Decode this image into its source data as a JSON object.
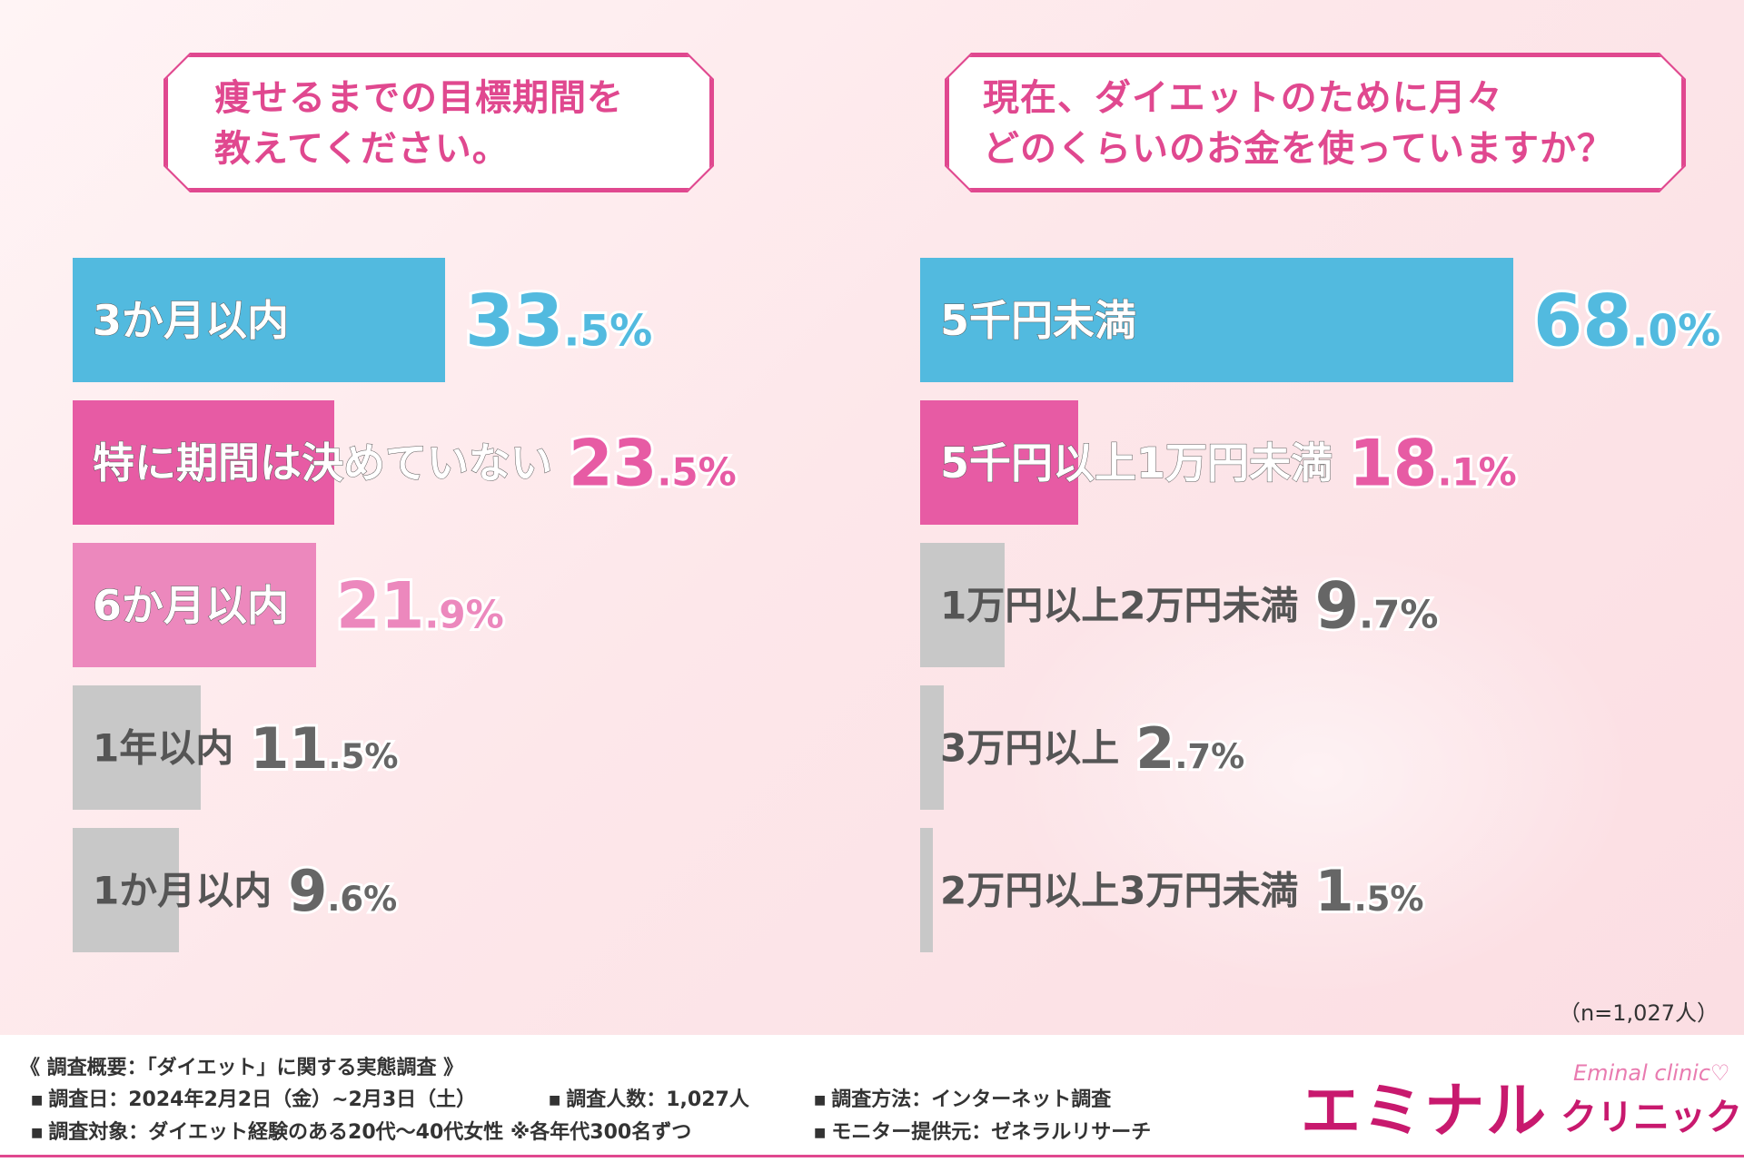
{
  "chart_data": [
    {
      "type": "bar",
      "title": "痩せるまでの目標期間を\n教えてください。",
      "categories": [
        "3か月以内",
        "特に期間は決めていない",
        "6か月以内",
        "1年以内",
        "1か月以内"
      ],
      "values": [
        33.5,
        23.5,
        21.9,
        11.5,
        9.6
      ],
      "colors": [
        "#52badf",
        "#e75ba4",
        "#ec88bd",
        "#c8c8c8",
        "#c8c8c8"
      ],
      "value_colors": [
        "#52badf",
        "#e75ba4",
        "#ec88bd",
        "#666666",
        "#666666"
      ],
      "label_colors": [
        "#ffffff",
        "#ffffff",
        "#ffffff",
        "#555555",
        "#555555"
      ],
      "unit": "%",
      "xlim": [
        0,
        42
      ]
    },
    {
      "type": "bar",
      "title": "現在、ダイエットのために月々\nどのくらいのお金を使っていますか？",
      "categories": [
        "5千円未満",
        "5千円以上1万円未満",
        "1万円以上2万円未満",
        "3万円以上",
        "2万円以上3万円未満"
      ],
      "values": [
        68.0,
        18.1,
        9.7,
        2.7,
        1.5
      ],
      "colors": [
        "#52badf",
        "#e75ba4",
        "#c8c8c8",
        "#c8c8c8",
        "#c8c8c8"
      ],
      "value_colors": [
        "#52badf",
        "#e75ba4",
        "#666666",
        "#666666",
        "#666666"
      ],
      "label_colors": [
        "#ffffff",
        "#ffffff",
        "#555555",
        "#555555",
        "#555555"
      ],
      "unit": "%",
      "xlim": [
        0,
        68.0
      ]
    }
  ],
  "sample_note": "（n=1,027人）",
  "footer": {
    "heading": "《 調査概要：「ダイエット」に関する実態調査 》",
    "date": "調査日：2024年2月2日（金）~2月3日（土）",
    "count": "調査人数：1,027人",
    "method": "調査方法：インターネット調査",
    "target": "調査対象：ダイエット経験のある20代～40代女性 ※各年代300名ずつ",
    "provider": "モニター提供元：ゼネラルリサーチ",
    "bullet": "■"
  },
  "logo": {
    "main": "エミナル",
    "sub": "クリニック",
    "en": "Eminal clinic♡"
  }
}
